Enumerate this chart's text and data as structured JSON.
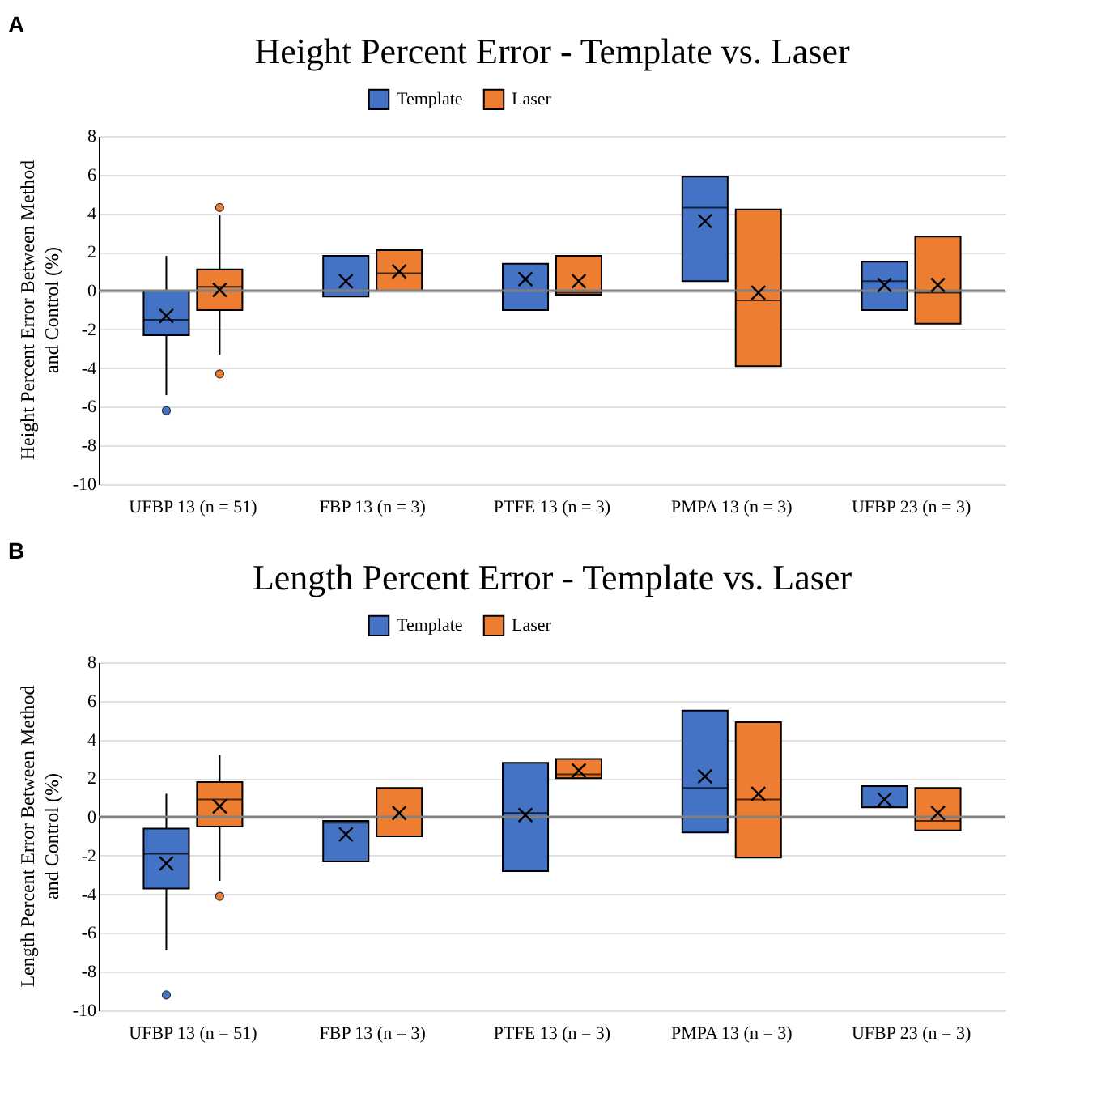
{
  "chart_data": [
    {
      "type": "box",
      "title": "Height Percent Error - Template vs. Laser",
      "annotations": [
        "A"
      ],
      "ylabel": "Height Percent Error Between Method and Control (%)",
      "categories": [
        "UFBP 13 (n = 51)",
        "FBP 13 (n = 3)",
        "PTFE 13 (n = 3)",
        "PMPA 13 (n = 3)",
        "UFBP 23  (n = 3)"
      ],
      "ylim": [
        -10,
        8
      ],
      "yticks": [
        -10,
        -8,
        -6,
        -4,
        -2,
        0,
        2,
        4,
        6,
        8
      ],
      "grid": "y",
      "legend": "top",
      "ref_lines": [
        {
          "axis": "y",
          "value": 0,
          "color": "#808080"
        }
      ],
      "series": [
        {
          "name": "Template",
          "color": "#4472c4",
          "boxes": [
            {
              "low": -5.4,
              "q1": -2.3,
              "median": -1.5,
              "q3": 0,
              "high": 1.8,
              "mean": -1.3,
              "outliers": [
                -6.2
              ]
            },
            {
              "low": -0.3,
              "q1": -0.3,
              "median": 0,
              "q3": 1.8,
              "high": 1.8,
              "mean": 0.5
            },
            {
              "low": -1.0,
              "q1": -1.0,
              "median": 0,
              "q3": 1.4,
              "high": 1.4,
              "mean": 0.6
            },
            {
              "low": 0.5,
              "q1": 0.5,
              "median": 4.3,
              "q3": 5.9,
              "high": 5.9,
              "mean": 3.6
            },
            {
              "low": -1.0,
              "q1": -1.0,
              "median": 0.5,
              "q3": 1.5,
              "high": 1.5,
              "mean": 0.3
            }
          ]
        },
        {
          "name": "Laser",
          "color": "#ed7d31",
          "boxes": [
            {
              "low": -3.3,
              "q1": -1.0,
              "median": 0.2,
              "q3": 1.1,
              "high": 3.9,
              "mean": 0.05,
              "outliers": [
                4.3,
                -4.3
              ]
            },
            {
              "low": 0,
              "q1": 0,
              "median": 0.9,
              "q3": 2.1,
              "high": 2.1,
              "mean": 1.0
            },
            {
              "low": -0.2,
              "q1": -0.2,
              "median": -0.1,
              "q3": 1.8,
              "high": 1.8,
              "mean": 0.5
            },
            {
              "low": -3.9,
              "q1": -3.9,
              "median": -0.5,
              "q3": 4.2,
              "high": 4.2,
              "mean": -0.1
            },
            {
              "low": -1.7,
              "q1": -1.7,
              "median": -0.1,
              "q3": 2.8,
              "high": 2.8,
              "mean": 0.3
            }
          ]
        }
      ]
    },
    {
      "type": "box",
      "title": "Length Percent Error - Template vs. Laser",
      "annotations": [
        "B"
      ],
      "ylabel": "Length Percent Error Between Method and Control (%)",
      "categories": [
        "UFBP 13 (n = 51)",
        "FBP 13 (n = 3)",
        "PTFE 13 (n = 3)",
        "PMPA 13 (n = 3)",
        "UFBP 23  (n = 3)"
      ],
      "ylim": [
        -10,
        8
      ],
      "yticks": [
        -10,
        -8,
        -6,
        -4,
        -2,
        0,
        2,
        4,
        6,
        8
      ],
      "grid": "y",
      "legend": "top",
      "ref_lines": [
        {
          "axis": "y",
          "value": 0,
          "color": "#808080"
        }
      ],
      "series": [
        {
          "name": "Template",
          "color": "#4472c4",
          "boxes": [
            {
              "low": -6.9,
              "q1": -3.7,
              "median": -1.9,
              "q3": -0.6,
              "high": 1.2,
              "mean": -2.4,
              "outliers": [
                -9.2
              ]
            },
            {
              "low": -2.3,
              "q1": -2.3,
              "median": -0.3,
              "q3": -0.2,
              "high": -0.2,
              "mean": -0.9
            },
            {
              "low": -2.8,
              "q1": -2.8,
              "median": 0.2,
              "q3": 2.8,
              "high": 2.8,
              "mean": 0.1
            },
            {
              "low": -0.8,
              "q1": -0.8,
              "median": 1.5,
              "q3": 5.5,
              "high": 5.5,
              "mean": 2.1
            },
            {
              "low": 0.5,
              "q1": 0.5,
              "median": 0.55,
              "q3": 1.6,
              "high": 1.6,
              "mean": 0.9
            }
          ]
        },
        {
          "name": "Laser",
          "color": "#ed7d31",
          "boxes": [
            {
              "low": -3.3,
              "q1": -0.5,
              "median": 0.9,
              "q3": 1.8,
              "high": 3.2,
              "mean": 0.55,
              "outliers": [
                -4.1
              ]
            },
            {
              "low": -1.0,
              "q1": -1.0,
              "median": 0,
              "q3": 1.5,
              "high": 1.5,
              "mean": 0.2
            },
            {
              "low": 2.0,
              "q1": 2.0,
              "median": 2.2,
              "q3": 3.0,
              "high": 3.0,
              "mean": 2.4
            },
            {
              "low": -2.1,
              "q1": -2.1,
              "median": 0.9,
              "q3": 4.9,
              "high": 4.9,
              "mean": 1.2
            },
            {
              "low": -0.7,
              "q1": -0.7,
              "median": -0.2,
              "q3": 1.5,
              "high": 1.5,
              "mean": 0.2
            }
          ]
        }
      ]
    }
  ]
}
